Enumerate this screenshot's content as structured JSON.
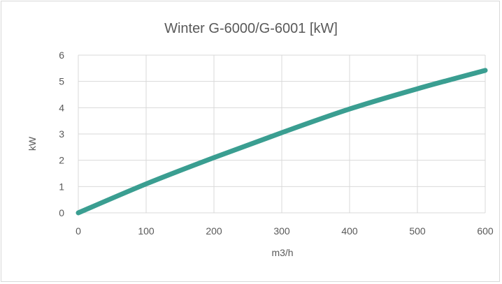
{
  "chart_data": {
    "type": "line",
    "title": "Winter G-6000/G-6001 [kW]",
    "xlabel": "m3/h",
    "ylabel": "kW",
    "xlim": [
      0,
      600
    ],
    "ylim": [
      0,
      6
    ],
    "xticks": [
      "0",
      "100",
      "200",
      "300",
      "400",
      "500",
      "600"
    ],
    "yticks": [
      "0",
      "1",
      "2",
      "3",
      "4",
      "5",
      "6"
    ],
    "grid": true,
    "legend": "none",
    "series": [
      {
        "x": [
          0,
          100,
          200,
          300,
          400,
          500,
          600
        ],
        "y": [
          0,
          1.1,
          2.1,
          3.05,
          3.95,
          4.72,
          5.42
        ],
        "color": "#3a9e91"
      }
    ]
  }
}
